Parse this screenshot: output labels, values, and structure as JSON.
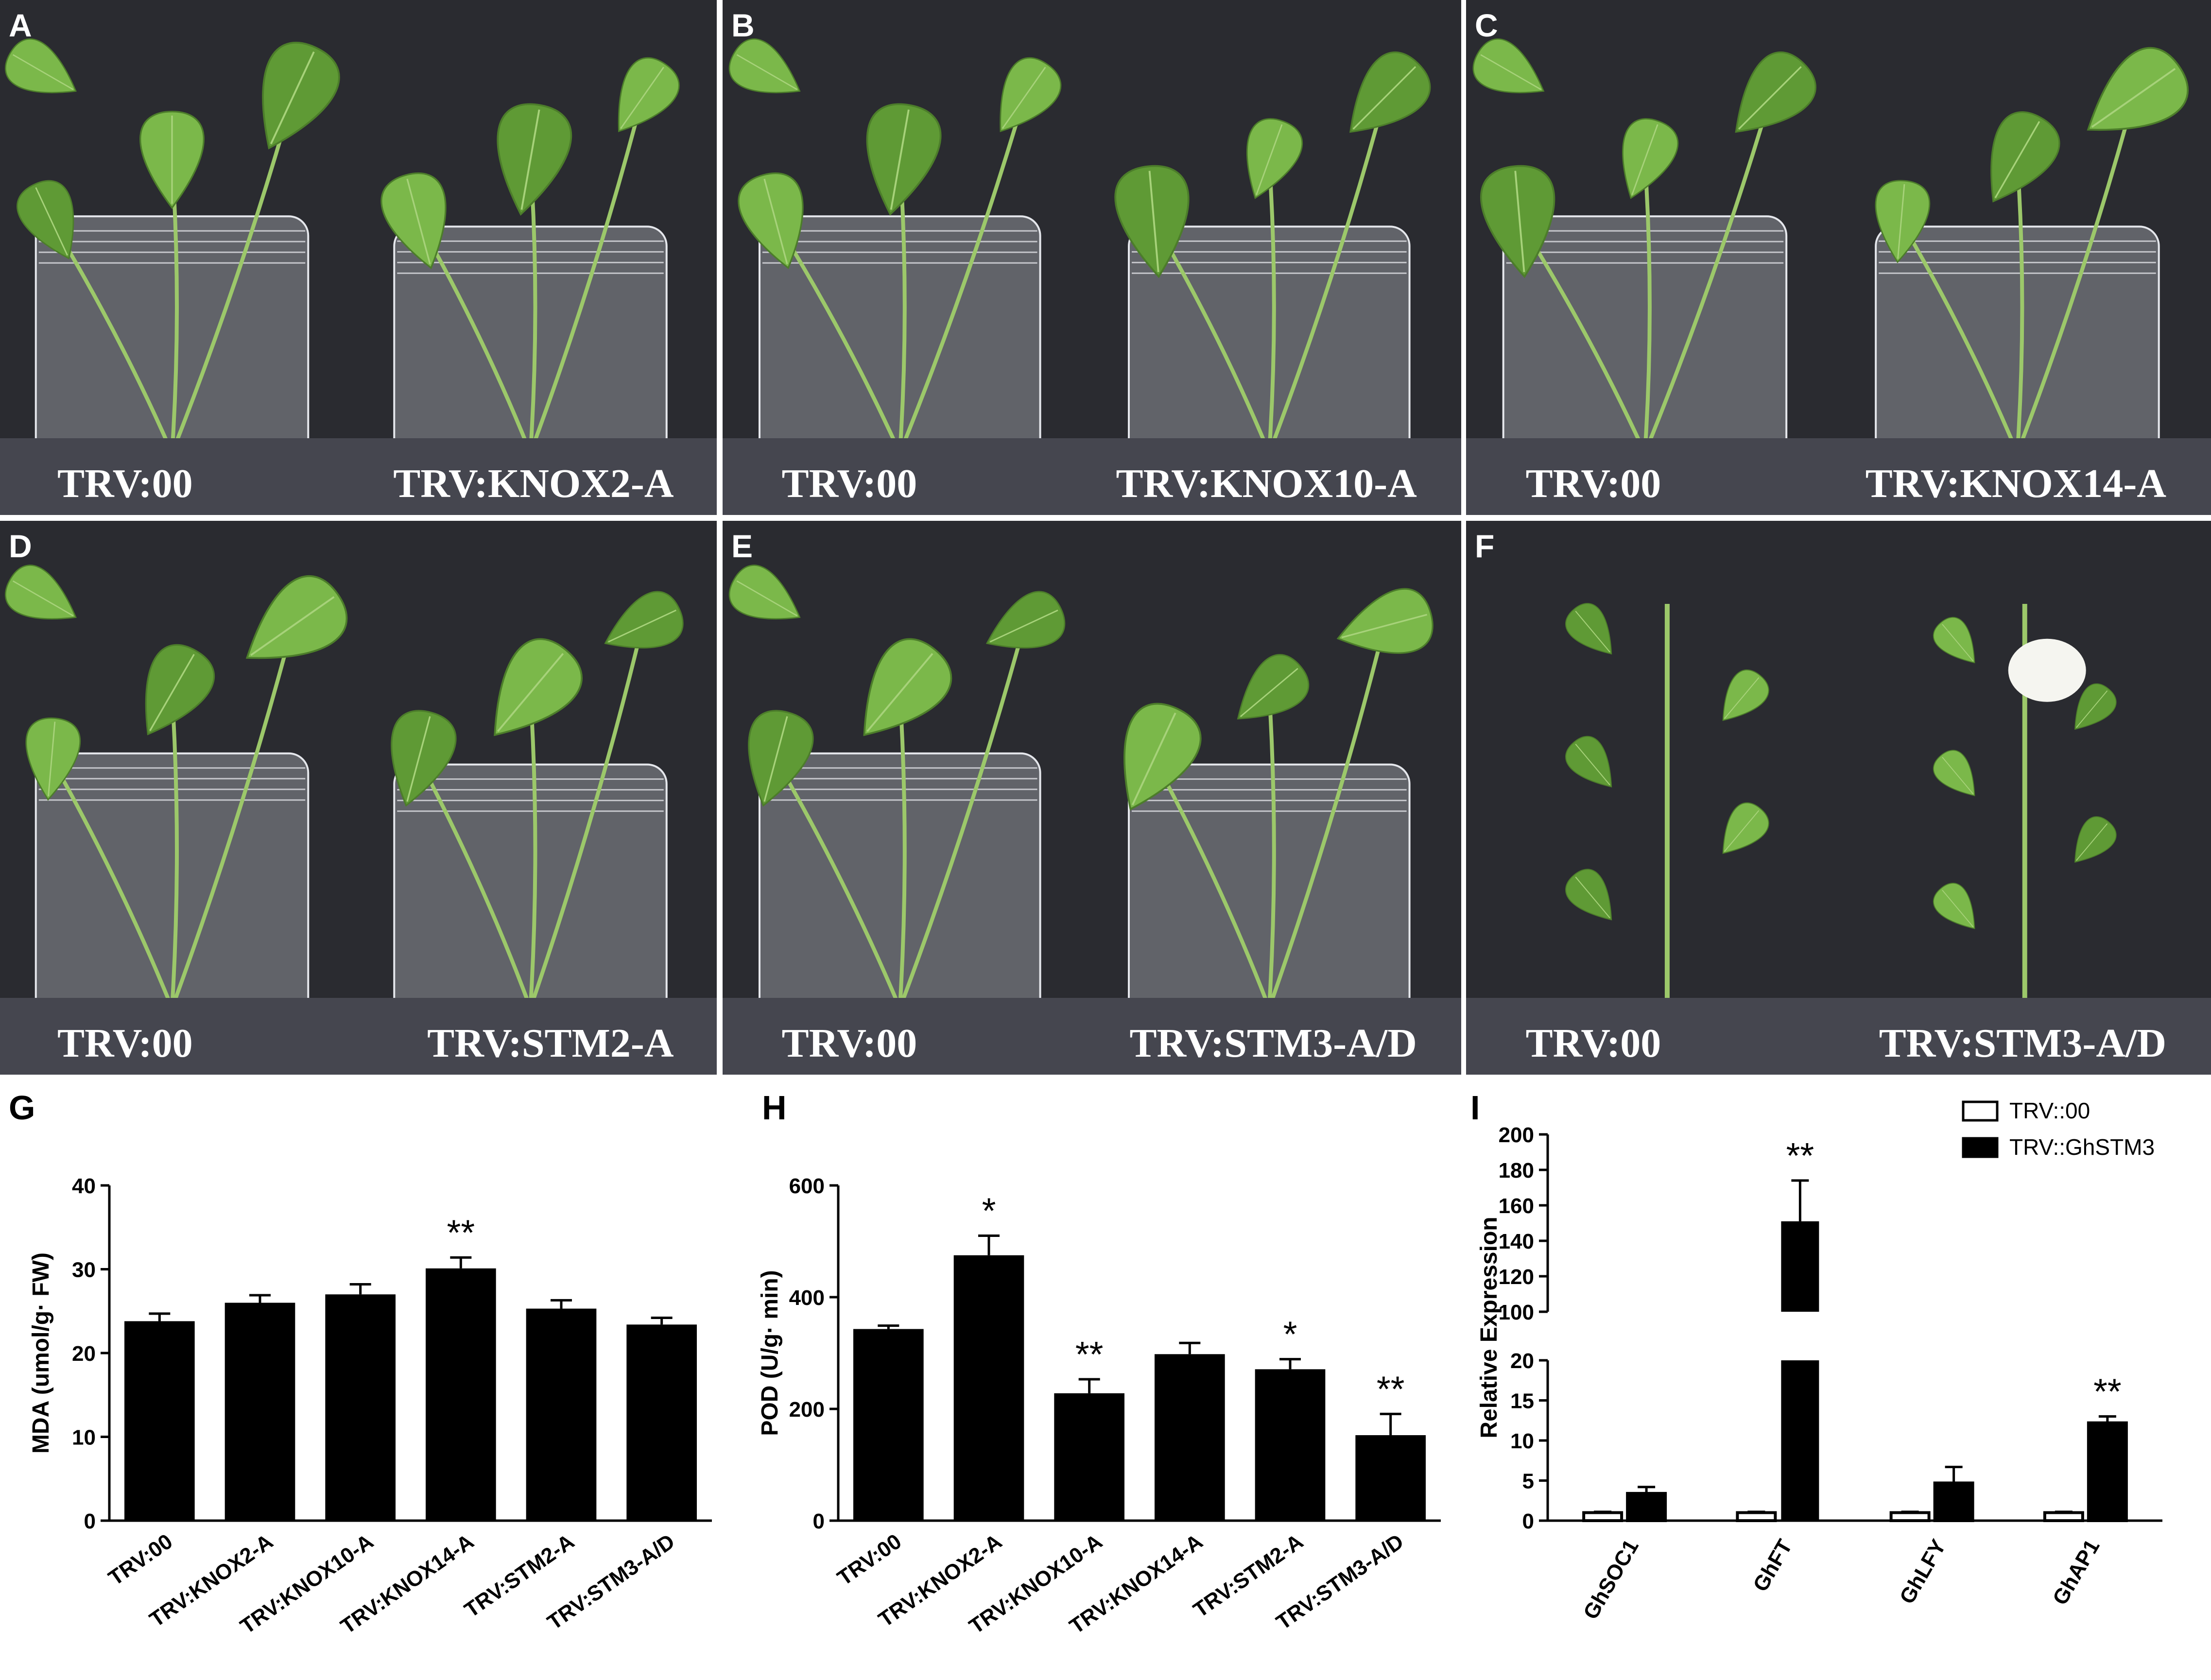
{
  "panels": [
    {
      "letter": "A",
      "left_caption": "TRV:00",
      "right_caption": "TRV:KNOX2-A"
    },
    {
      "letter": "B",
      "left_caption": "TRV:00",
      "right_caption": "TRV:KNOX10-A"
    },
    {
      "letter": "C",
      "left_caption": "TRV:00",
      "right_caption": "TRV:KNOX14-A"
    },
    {
      "letter": "D",
      "left_caption": "TRV:00",
      "right_caption": "TRV:STM2-A"
    },
    {
      "letter": "E",
      "left_caption": "TRV:00",
      "right_caption": "TRV:STM3-A/D"
    },
    {
      "letter": "F",
      "left_caption": "TRV:00",
      "right_caption": "TRV:STM3-A/D"
    }
  ],
  "photo_colors": {
    "background": "#2a2b30",
    "caption_band": "#45464f",
    "leaf": "#7bb84a",
    "leaf_dark": "#5f9a35",
    "stem": "#9cc86a",
    "jar": "#c9ccd4",
    "pot": "#e8e4dc",
    "soil": "#7a6a55",
    "flower": "#f5f5f0"
  },
  "chart_data": [
    {
      "letter": "G",
      "type": "bar",
      "ylabel": "MDA (umol/g· FW)",
      "categories": [
        "TRV:00",
        "TRV:KNOX2-A",
        "TRV:KNOX10-A",
        "TRV:KNOX14-A",
        "TRV:STM2-A",
        "TRV:STM3-A/D"
      ],
      "values": [
        23.8,
        26.0,
        27.0,
        30.1,
        25.3,
        23.4
      ],
      "errors": [
        0.9,
        0.9,
        1.2,
        1.3,
        1.0,
        0.8
      ],
      "significance": [
        "",
        "",
        "",
        "**",
        "",
        ""
      ],
      "ylim": [
        0,
        40
      ],
      "yticks": [
        0,
        10,
        20,
        30,
        40
      ]
    },
    {
      "letter": "H",
      "type": "bar",
      "ylabel": "POD (U/g· min)",
      "categories": [
        "TRV:00",
        "TRV:KNOX2-A",
        "TRV:KNOX10-A",
        "TRV:KNOX14-A",
        "TRV:STM2-A",
        "TRV:STM3-A/D"
      ],
      "values": [
        343,
        475,
        228,
        298,
        271,
        153
      ],
      "errors": [
        6,
        35,
        25,
        20,
        18,
        38
      ],
      "significance": [
        "",
        "*",
        "**",
        "",
        "*",
        "**"
      ],
      "ylim": [
        0,
        600
      ],
      "yticks": [
        0,
        200,
        400,
        600
      ]
    },
    {
      "letter": "I",
      "type": "bar",
      "ylabel": "Relative Expression",
      "categories": [
        "GhSOC1",
        "GhFT",
        "GhLFY",
        "GhAP1"
      ],
      "series": [
        {
          "name": "TRV::00",
          "values": [
            1,
            1,
            1,
            1
          ],
          "errors": [
            0.1,
            0.1,
            0.1,
            0.1
          ]
        },
        {
          "name": "TRV::GhSTM3",
          "values": [
            3.4,
            151,
            4.7,
            12.2
          ],
          "errors": [
            0.8,
            23,
            2.0,
            0.8
          ]
        }
      ],
      "significance": [
        "",
        "**",
        "",
        "**"
      ],
      "axis_break": {
        "lower": [
          0,
          20
        ],
        "upper": [
          100,
          200
        ]
      },
      "yticks_lower": [
        0,
        5,
        10,
        15,
        20
      ],
      "yticks_upper": [
        100,
        120,
        140,
        160,
        180,
        200
      ],
      "legend_position": "top-right"
    }
  ]
}
